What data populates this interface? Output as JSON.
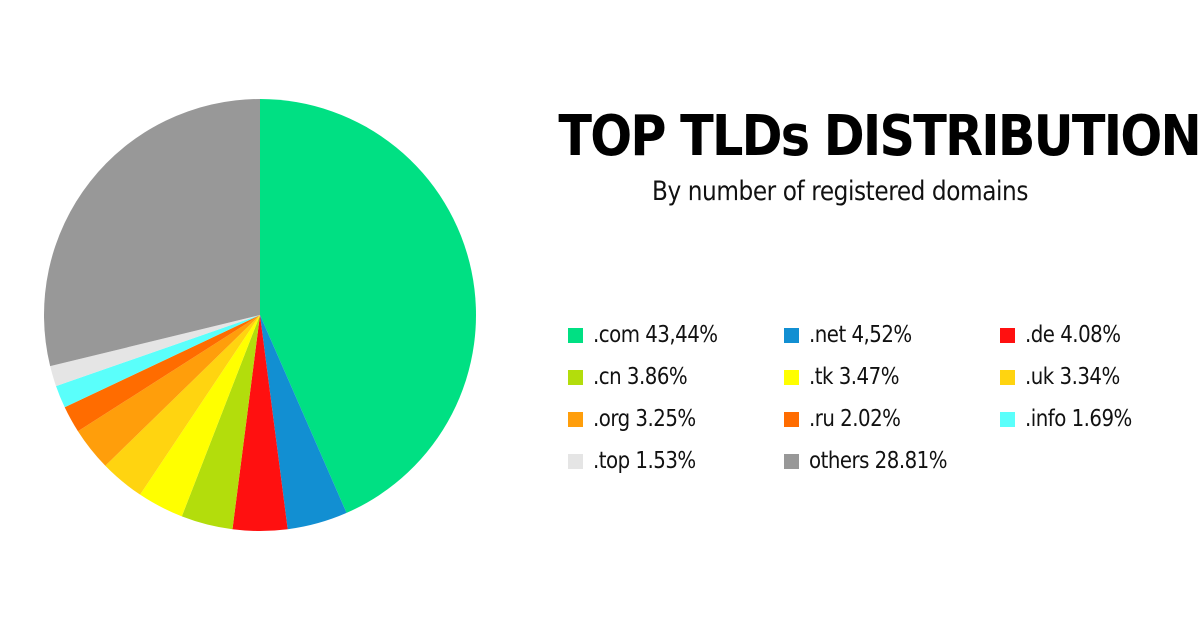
{
  "header": {
    "title": "TOP TLDs DISTRIBUTION",
    "subtitle": "By number of registered domains"
  },
  "legend": {
    "items": [
      {
        "label": ".com 43,44%",
        "color": "#00e083"
      },
      {
        "label": ".net 4,52%",
        "color": "#128fd2"
      },
      {
        "label": ".de 4.08%",
        "color": "#ff1010"
      },
      {
        "label": ".cn 3.86%",
        "color": "#b3dd0c"
      },
      {
        "label": ".tk 3.47%",
        "color": "#ffff00"
      },
      {
        "label": ".uk 3.34%",
        "color": "#ffd410"
      },
      {
        "label": ".org 3.25%",
        "color": "#ff9e0b"
      },
      {
        "label": ".ru 2.02%",
        "color": "#ff6c00"
      },
      {
        "label": ".info 1.69%",
        "color": "#5afffb"
      },
      {
        "label": ".top 1.53%",
        "color": "#e5e5e5"
      },
      {
        "label": "others 28.81%",
        "color": "#989898"
      }
    ]
  },
  "chart_data": {
    "type": "pie",
    "title": "TOP TLDs DISTRIBUTION",
    "subtitle": "By number of registered domains",
    "legend_position": "right",
    "start_angle": "12 o'clock",
    "direction": "clockwise",
    "categories": [
      ".com",
      ".net",
      ".de",
      ".cn",
      ".tk",
      ".uk",
      ".org",
      ".ru",
      ".info",
      ".top",
      "others"
    ],
    "values": [
      43.44,
      4.52,
      4.08,
      3.86,
      3.47,
      3.34,
      3.25,
      2.02,
      1.69,
      1.53,
      28.81
    ],
    "unit": "%",
    "colors": [
      "#00e083",
      "#128fd2",
      "#ff1010",
      "#b3dd0c",
      "#ffff00",
      "#ffd410",
      "#ff9e0b",
      "#ff6c00",
      "#5afffb",
      "#e5e5e5",
      "#989898"
    ]
  }
}
